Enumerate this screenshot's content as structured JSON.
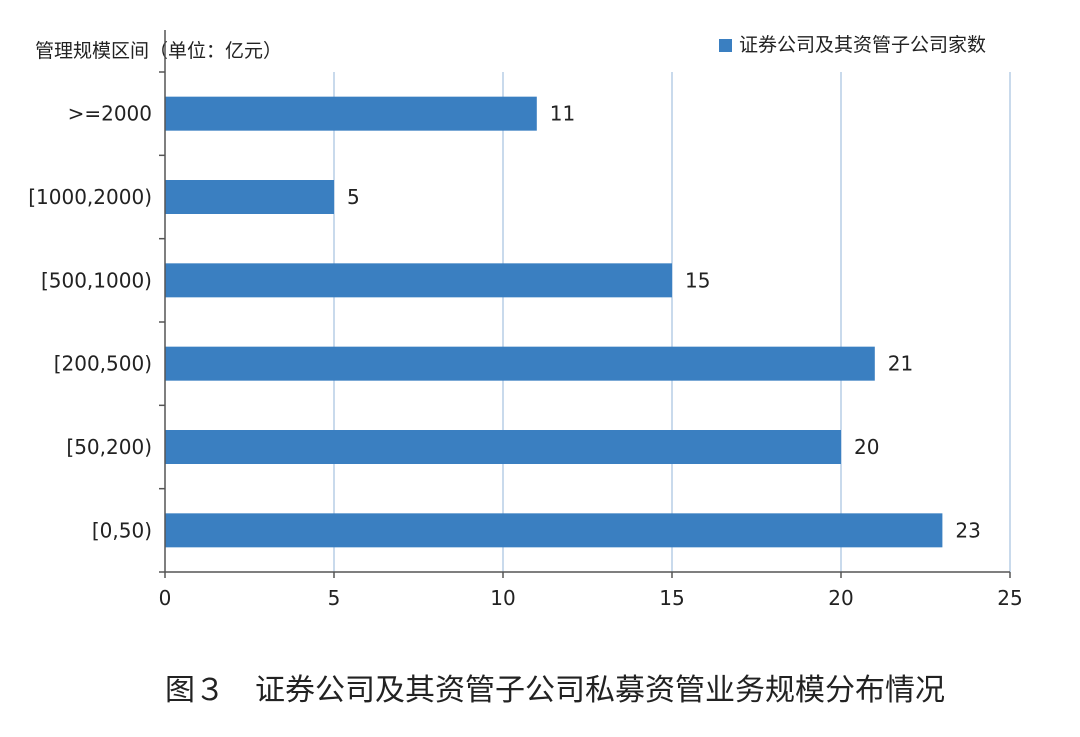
{
  "chart_data": {
    "type": "bar",
    "orientation": "horizontal",
    "title": "图３　证券公司及其资管子公司私募资管业务规模分布情况",
    "ylabel": "管理规模区间（单位：亿元）",
    "xlabel": "",
    "categories": [
      ">=2000",
      "[1000,2000)",
      "[500,1000)",
      "[200,500)",
      "[50,200)",
      "[0,50)"
    ],
    "series": [
      {
        "name": "证券公司及其资管子公司家数",
        "values": [
          11,
          5,
          15,
          21,
          20,
          23
        ],
        "color": "#3a7fc1"
      }
    ],
    "xlim": [
      0,
      25
    ],
    "xticks": [
      0,
      5,
      10,
      15,
      20,
      25
    ],
    "grid": true,
    "grid_color": "#b7cde6",
    "legend_position": "top-right"
  }
}
